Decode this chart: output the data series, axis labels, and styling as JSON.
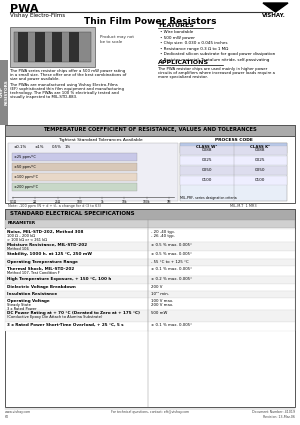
{
  "title_main": "PWA",
  "subtitle": "Vishay Electro-Films",
  "page_title": "Thin Film Power Resistors",
  "bg_color": "#ffffff",
  "features_title": "FEATURES",
  "features": [
    "Wire bondable",
    "500 mW power",
    "Chip size: 0.030 x 0.045 inches",
    "Resistance range 0.3 Ω to 1 MΩ",
    "Dedicated silicon substrate for good power dissipation",
    "Resistor material: Tantalum nitride, self-passivating"
  ],
  "applications_title": "APPLICATIONS",
  "app_lines": [
    "The PWA resistor chips are used mainly in higher power",
    "circuits of amplifiers where increased power loads require a",
    "more specialized resistor."
  ],
  "desc1_lines": [
    "The PWA series resistor chips offer a 500 mW power rating",
    "in a small size. These offer one of the best combinations of",
    "size and power available."
  ],
  "desc2_lines": [
    "The PWAs are manufactured using Vishay Electro-Films",
    "(EF) sophisticated thin film equipment and manufacturing",
    "technology. The PWAs are 100 % electrically tested and",
    "visually inspected to MIL-STD-883."
  ],
  "product_note": "Product may not\nbe to scale",
  "tc_section_title": "TEMPERATURE COEFFICIENT OF RESISTANCE, VALUES AND TOLERANCES",
  "tc_subtitle": "Tightest Standard Tolerances Available",
  "tc_tolerances": [
    "±0.1%",
    "±1%",
    "    0.5%",
    "        1%"
  ],
  "tc_process_title": "PROCESS CODE",
  "tc_class_w": "CLASS W¹",
  "tc_class_k": "CLASS K²",
  "tc_rows": [
    [
      "0088",
      "0088"
    ],
    [
      "0025",
      "0025"
    ],
    [
      "0050",
      "0050"
    ],
    [
      "0100",
      "0100"
    ]
  ],
  "tc_note": "MIL-PRF- series designation criteria",
  "tc_axis_labels": [
    "0.1Ω",
    "2.0",
    "0.1Ω(1)",
    "25Ω",
    "100",
    "1kΩ",
    "25kΩ",
    "100kΩ",
    "1MΩ"
  ],
  "tc_note2": "Note: -100 ppm (N + d + t), a change for d (3 to 63)",
  "tc_note3": "MIL-M-T  1 MR3",
  "spec_section_title": "STANDARD ELECTRICAL SPECIFICATIONS",
  "spec_col1": "PARAMETER",
  "spec_rows": [
    {
      "param": "Noise, MIL-STD-202, Method 308\n100 Ω – 200 kΩ\n> 100 kΩ or < 261 kΩ",
      "value": "- 20 -40 typ.\n- 26 -40 typ."
    },
    {
      "param": "Moisture Resistance, MIL-STD-202\nMethod 106",
      "value": "± 0.5 % max. 0.005°"
    },
    {
      "param": "Stability, 1000 h. at 125 °C, 250 mW",
      "value": "± 0.5 % max. 0.005°"
    },
    {
      "param": "Operating Temperature Range",
      "value": "- 55 °C to + 125 °C"
    },
    {
      "param": "Thermal Shock, MIL-STD-202\nMethod 107, Test Condition F",
      "value": "± 0.1 % max. 0.005°"
    },
    {
      "param": "High Temperature Exposure, + 150 °C, 100 h",
      "value": "± 0.2 % max. 0.005°"
    },
    {
      "param": "Dielectric Voltage Breakdown",
      "value": "200 V"
    },
    {
      "param": "Insulation Resistance",
      "value": "10¹⁰ min."
    },
    {
      "param": "Operating Voltage\nSteady State\n3 x Rated Power",
      "value": "100 V max.\n200 V max."
    },
    {
      "param": "DC Power Rating at + 70 °C (Derated to Zero at + 175 °C)\n(Conductive Epoxy Die Attach to Alumina Substrate)",
      "value": "500 mW"
    },
    {
      "param": "3 x Rated Power Short-Time Overload, + 25 °C, 5 s",
      "value": "± 0.1 % max. 0.005°"
    }
  ],
  "footer_left": "www.vishay.com\n60",
  "footer_center": "For technical questions, contact: eft@vishay.com",
  "footer_right": "Document Number: 41019\nRevision: 13-Mar-06",
  "side_label": "CHIP\nRESISTORS"
}
